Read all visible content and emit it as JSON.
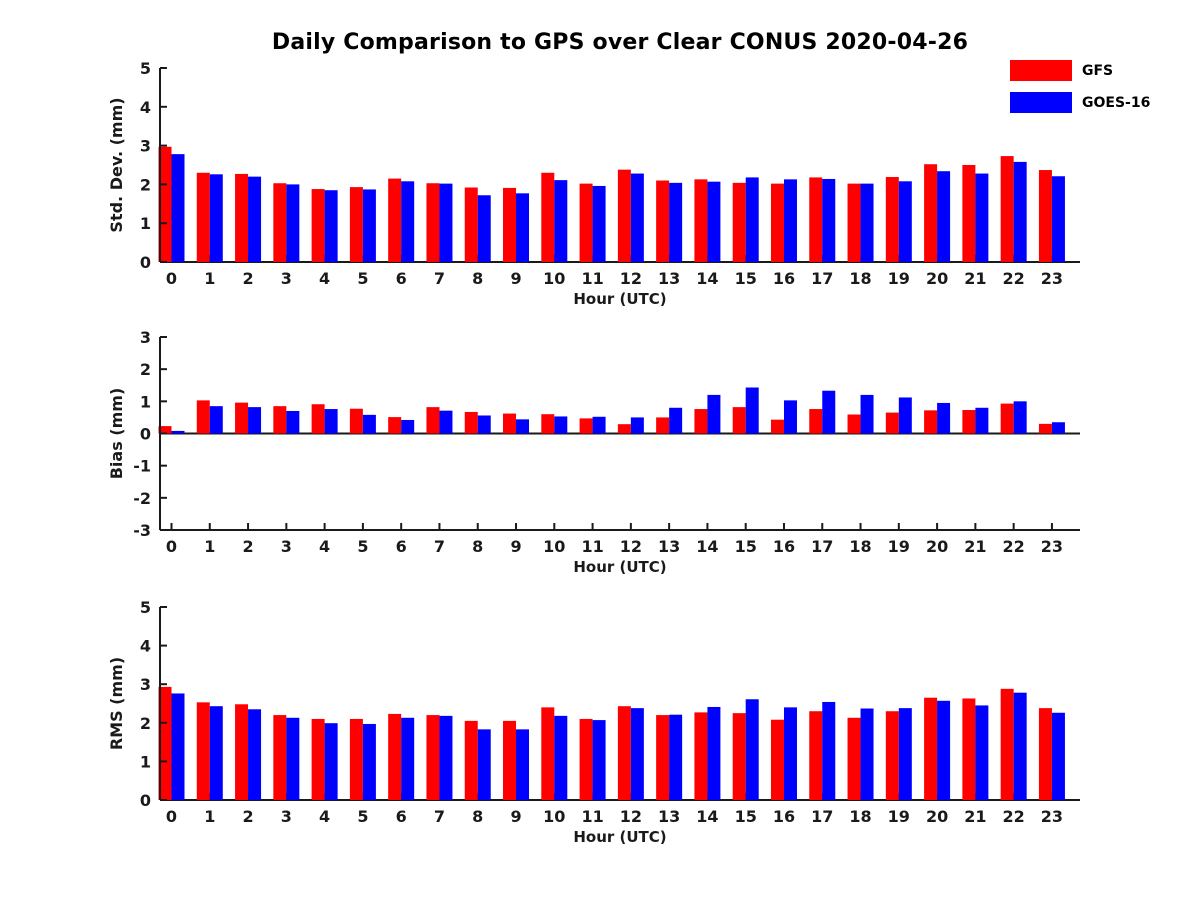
{
  "figure": {
    "title": "Daily Comparison to GPS over Clear CONUS 2020-04-26",
    "legend": [
      {
        "label": "GFS",
        "color": "#ff0000"
      },
      {
        "label": "GOES-16",
        "color": "#0000ff"
      }
    ],
    "text_color": "#1a1a1a",
    "background": "#ffffff"
  },
  "chart_data": [
    {
      "type": "bar",
      "title": "",
      "ylabel": "Std. Dev. (mm)",
      "xlabel": "Hour (UTC)",
      "categories": [
        "0",
        "1",
        "2",
        "3",
        "4",
        "5",
        "6",
        "7",
        "8",
        "9",
        "10",
        "11",
        "12",
        "13",
        "14",
        "15",
        "16",
        "17",
        "18",
        "19",
        "20",
        "21",
        "22",
        "23"
      ],
      "ylim": [
        0,
        5
      ],
      "yticks": [
        0,
        1,
        2,
        3,
        4,
        5
      ],
      "grid": false,
      "legend_position": "top-right-outside",
      "series": [
        {
          "name": "GFS",
          "color": "#ff0000",
          "values": [
            2.97,
            2.3,
            2.27,
            2.03,
            1.88,
            1.93,
            2.15,
            2.03,
            1.92,
            1.91,
            2.3,
            2.02,
            2.38,
            2.1,
            2.13,
            2.04,
            2.02,
            2.18,
            2.02,
            2.19,
            2.52,
            2.5,
            2.73,
            2.37
          ]
        },
        {
          "name": "GOES-16",
          "color": "#0000ff",
          "values": [
            2.78,
            2.26,
            2.2,
            2.0,
            1.85,
            1.87,
            2.08,
            2.02,
            1.72,
            1.77,
            2.11,
            1.96,
            2.28,
            2.04,
            2.07,
            2.18,
            2.13,
            2.14,
            2.02,
            2.08,
            2.34,
            2.28,
            2.58,
            2.21
          ]
        }
      ]
    },
    {
      "type": "bar",
      "title": "",
      "ylabel": "Bias (mm)",
      "xlabel": "Hour (UTC)",
      "categories": [
        "0",
        "1",
        "2",
        "3",
        "4",
        "5",
        "6",
        "7",
        "8",
        "9",
        "10",
        "11",
        "12",
        "13",
        "14",
        "15",
        "16",
        "17",
        "18",
        "19",
        "20",
        "21",
        "22",
        "23"
      ],
      "ylim": [
        -3,
        3
      ],
      "yticks": [
        3,
        2,
        1,
        0,
        -1,
        -2,
        -3
      ],
      "grid": false,
      "legend_position": "none",
      "series": [
        {
          "name": "GFS",
          "color": "#ff0000",
          "values": [
            0.23,
            1.03,
            0.96,
            0.85,
            0.91,
            0.77,
            0.51,
            0.82,
            0.67,
            0.62,
            0.6,
            0.47,
            0.29,
            0.5,
            0.76,
            0.82,
            0.43,
            0.76,
            0.59,
            0.65,
            0.72,
            0.73,
            0.93,
            0.3
          ]
        },
        {
          "name": "GOES-16",
          "color": "#0000ff",
          "values": [
            0.08,
            0.85,
            0.82,
            0.7,
            0.76,
            0.58,
            0.42,
            0.71,
            0.56,
            0.44,
            0.53,
            0.52,
            0.5,
            0.8,
            1.2,
            1.43,
            1.03,
            1.33,
            1.2,
            1.12,
            0.95,
            0.8,
            1.0,
            0.35
          ]
        }
      ]
    },
    {
      "type": "bar",
      "title": "",
      "ylabel": "RMS (mm)",
      "xlabel": "Hour (UTC)",
      "categories": [
        "0",
        "1",
        "2",
        "3",
        "4",
        "5",
        "6",
        "7",
        "8",
        "9",
        "10",
        "11",
        "12",
        "13",
        "14",
        "15",
        "16",
        "17",
        "18",
        "19",
        "20",
        "21",
        "22",
        "23"
      ],
      "ylim": [
        0,
        5
      ],
      "yticks": [
        0,
        1,
        2,
        3,
        4,
        5
      ],
      "grid": false,
      "legend_position": "none",
      "series": [
        {
          "name": "GFS",
          "color": "#ff0000",
          "values": [
            2.93,
            2.53,
            2.48,
            2.2,
            2.1,
            2.1,
            2.23,
            2.2,
            2.05,
            2.05,
            2.4,
            2.1,
            2.43,
            2.2,
            2.27,
            2.25,
            2.08,
            2.3,
            2.13,
            2.3,
            2.65,
            2.63,
            2.88,
            2.38
          ]
        },
        {
          "name": "GOES-16",
          "color": "#0000ff",
          "values": [
            2.76,
            2.43,
            2.35,
            2.13,
            1.99,
            1.97,
            2.13,
            2.18,
            1.83,
            1.83,
            2.18,
            2.07,
            2.38,
            2.21,
            2.41,
            2.61,
            2.4,
            2.54,
            2.37,
            2.38,
            2.57,
            2.45,
            2.78,
            2.26
          ]
        }
      ]
    }
  ]
}
